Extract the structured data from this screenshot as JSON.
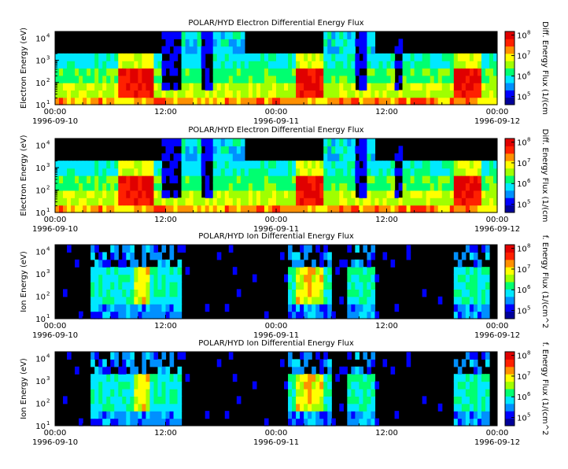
{
  "time_axis": {
    "tick_labels": [
      "00:00",
      "12:00",
      "00:00",
      "12:00",
      "00:00"
    ],
    "date_labels": [
      "1996-09-10",
      "1996-09-11",
      "1996-09-12"
    ],
    "range": [
      "1996-09-10 00:00",
      "1996-09-12 00:00"
    ]
  },
  "colorbar": {
    "tick_labels": [
      "10",
      "10",
      "10",
      "10"
    ],
    "tick_exponents": [
      "5",
      "6",
      "7",
      "8"
    ],
    "range": [
      40000,
      150000000
    ],
    "scale": "log",
    "colors": [
      "#00009a",
      "#0000ff",
      "#0090ff",
      "#00e8ff",
      "#00ff70",
      "#a0ff00",
      "#ffff00",
      "#ff9000",
      "#ff2000",
      "#e00000"
    ]
  },
  "energy_axis": {
    "tick_labels": [
      "10",
      "10",
      "10",
      "10"
    ],
    "tick_exponents": [
      "1",
      "2",
      "3",
      "4"
    ]
  },
  "chart_data": [
    {
      "type": "heatmap",
      "title": "POLAR/HYD  Electron Differential Energy Flux",
      "ylabel": "Electron Energy (eV)",
      "colorbar_label": "Diff. Energy Flux (1/(cm",
      "ylim": [
        10,
        20000
      ],
      "yscale": "log",
      "xlim": [
        "1996-09-10 00:00",
        "1996-09-12 00:00"
      ]
    },
    {
      "type": "heatmap",
      "title": "POLAR/HYD  Electron Differential Energy Flux",
      "ylabel": "Electron Energy (eV)",
      "colorbar_label": "Diff. Energy Flux (1/(cm",
      "ylim": [
        10,
        20000
      ],
      "yscale": "log",
      "xlim": [
        "1996-09-10 00:00",
        "1996-09-12 00:00"
      ]
    },
    {
      "type": "heatmap",
      "title": "POLAR/HYD  Ion Differential Energy Flux",
      "ylabel": "Ion Energy (eV)",
      "colorbar_label": "f. Energy Flux (1/(cm^2",
      "ylim": [
        10,
        20000
      ],
      "yscale": "log",
      "xlim": [
        "1996-09-10 00:00",
        "1996-09-12 00:00"
      ]
    },
    {
      "type": "heatmap",
      "title": "POLAR/HYD  Ion Differential Energy Flux",
      "ylabel": "Ion Energy (eV)",
      "colorbar_label": "f. Energy Flux (1/(cm^2",
      "ylim": [
        10,
        20000
      ],
      "yscale": "log",
      "xlim": [
        "1996-09-10 00:00",
        "1996-09-12 00:00"
      ]
    }
  ]
}
